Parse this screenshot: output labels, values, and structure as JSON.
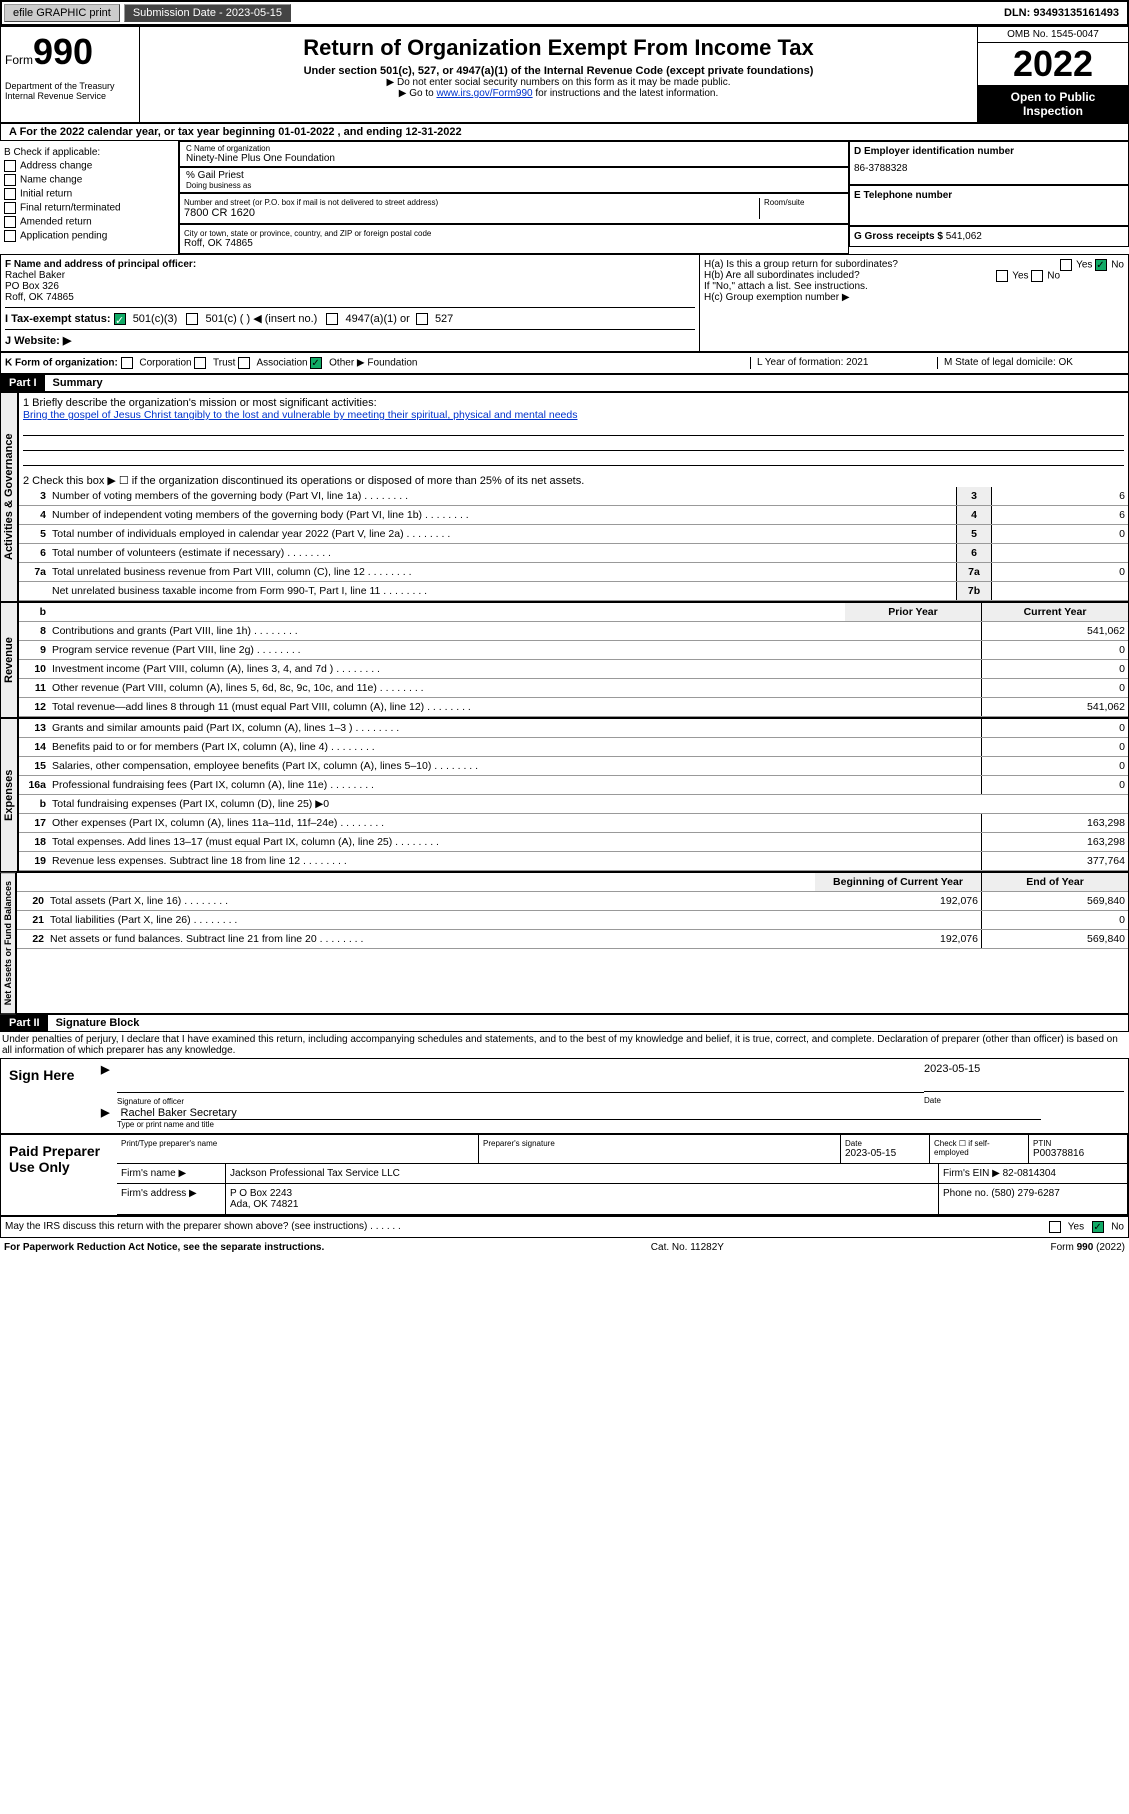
{
  "topbar": {
    "efile": "efile GRAPHIC print",
    "submission_label": "Submission Date - 2023-05-15",
    "dln": "DLN: 93493135161493"
  },
  "header": {
    "form_word": "Form",
    "form_num": "990",
    "title": "Return of Organization Exempt From Income Tax",
    "subtitle": "Under section 501(c), 527, or 4947(a)(1) of the Internal Revenue Code (except private foundations)",
    "note1": "▶ Do not enter social security numbers on this form as it may be made public.",
    "note2_pre": "▶ Go to ",
    "note2_link": "www.irs.gov/Form990",
    "note2_post": " for instructions and the latest information.",
    "dept": "Department of the Treasury\nInternal Revenue Service",
    "omb": "OMB No. 1545-0047",
    "year": "2022",
    "inspect": "Open to Public Inspection"
  },
  "row_a": "A For the 2022 calendar year, or tax year beginning 01-01-2022   , and ending 12-31-2022",
  "col_b": {
    "title": "B Check if applicable:",
    "items": [
      "Address change",
      "Name change",
      "Initial return",
      "Final return/terminated",
      "Amended return",
      "Application pending"
    ]
  },
  "col_c": {
    "name_label": "C Name of organization",
    "name": "Ninety-Nine Plus One Foundation",
    "care_of": "% Gail Priest",
    "dba_label": "Doing business as",
    "street_label": "Number and street (or P.O. box if mail is not delivered to street address)",
    "room_label": "Room/suite",
    "street": "7800 CR 1620",
    "city_label": "City or town, state or province, country, and ZIP or foreign postal code",
    "city": "Roff, OK  74865"
  },
  "col_d": {
    "label": "D Employer identification number",
    "value": "86-3788328"
  },
  "col_e": {
    "label": "E Telephone number",
    "value": ""
  },
  "col_g": {
    "label": "G Gross receipts $",
    "value": "541,062"
  },
  "col_f": {
    "label": "F  Name and address of principal officer:",
    "name": "Rachel Baker",
    "po": "PO Box 326",
    "city": "Roff, OK  74865"
  },
  "col_h": {
    "ha": "H(a)  Is this a group return for subordinates?",
    "hb": "H(b)  Are all subordinates included?",
    "hb_note": "If \"No,\" attach a list. See instructions.",
    "hc": "H(c)  Group exemption number ▶",
    "yes": "Yes",
    "no": "No"
  },
  "row_i": {
    "label": "I   Tax-exempt status:",
    "opt1": "501(c)(3)",
    "opt2": "501(c) (  ) ◀ (insert no.)",
    "opt3": "4947(a)(1) or",
    "opt4": "527"
  },
  "row_j": {
    "label": "J   Website: ▶",
    "value": ""
  },
  "row_k": {
    "label": "K Form of organization:",
    "opts": [
      "Corporation",
      "Trust",
      "Association",
      "Other ▶"
    ],
    "other_val": "Foundation",
    "l": "L Year of formation: 2021",
    "m": "M State of legal domicile: OK"
  },
  "part1": {
    "hdr": "Part I",
    "title": "Summary"
  },
  "activities": {
    "label": "Activities & Governance",
    "l1": "1   Briefly describe the organization's mission or most significant activities:",
    "mission": "Bring the gospel of Jesus Christ tangibly to the lost and vulnerable by meeting their spiritual, physical and mental needs",
    "l2": "2   Check this box ▶ ☐  if the organization discontinued its operations or disposed of more than 25% of its net assets.",
    "lines": [
      {
        "n": "3",
        "t": "Number of voting members of the governing body (Part VI, line 1a)",
        "c": "3",
        "v": "6"
      },
      {
        "n": "4",
        "t": "Number of independent voting members of the governing body (Part VI, line 1b)",
        "c": "4",
        "v": "6"
      },
      {
        "n": "5",
        "t": "Total number of individuals employed in calendar year 2022 (Part V, line 2a)",
        "c": "5",
        "v": "0"
      },
      {
        "n": "6",
        "t": "Total number of volunteers (estimate if necessary)",
        "c": "6",
        "v": ""
      },
      {
        "n": "7a",
        "t": "Total unrelated business revenue from Part VIII, column (C), line 12",
        "c": "7a",
        "v": "0"
      },
      {
        "n": "",
        "t": "Net unrelated business taxable income from Form 990-T, Part I, line 11",
        "c": "7b",
        "v": ""
      }
    ]
  },
  "revenue": {
    "label": "Revenue",
    "thead": {
      "n": "b",
      "prior": "Prior Year",
      "curr": "Current Year"
    },
    "lines": [
      {
        "n": "8",
        "t": "Contributions and grants (Part VIII, line 1h)",
        "p": "",
        "c": "541,062"
      },
      {
        "n": "9",
        "t": "Program service revenue (Part VIII, line 2g)",
        "p": "",
        "c": "0"
      },
      {
        "n": "10",
        "t": "Investment income (Part VIII, column (A), lines 3, 4, and 7d )",
        "p": "",
        "c": "0"
      },
      {
        "n": "11",
        "t": "Other revenue (Part VIII, column (A), lines 5, 6d, 8c, 9c, 10c, and 11e)",
        "p": "",
        "c": "0"
      },
      {
        "n": "12",
        "t": "Total revenue—add lines 8 through 11 (must equal Part VIII, column (A), line 12)",
        "p": "",
        "c": "541,062"
      }
    ]
  },
  "expenses": {
    "label": "Expenses",
    "lines": [
      {
        "n": "13",
        "t": "Grants and similar amounts paid (Part IX, column (A), lines 1–3 )",
        "p": "",
        "c": "0"
      },
      {
        "n": "14",
        "t": "Benefits paid to or for members (Part IX, column (A), line 4)",
        "p": "",
        "c": "0"
      },
      {
        "n": "15",
        "t": "Salaries, other compensation, employee benefits (Part IX, column (A), lines 5–10)",
        "p": "",
        "c": "0"
      },
      {
        "n": "16a",
        "t": "Professional fundraising fees (Part IX, column (A), line 11e)",
        "p": "",
        "c": "0"
      },
      {
        "n": "b",
        "t": "Total fundraising expenses (Part IX, column (D), line 25) ▶0",
        "p": "—",
        "c": "—"
      },
      {
        "n": "17",
        "t": "Other expenses (Part IX, column (A), lines 11a–11d, 11f–24e)",
        "p": "",
        "c": "163,298"
      },
      {
        "n": "18",
        "t": "Total expenses. Add lines 13–17 (must equal Part IX, column (A), line 25)",
        "p": "",
        "c": "163,298"
      },
      {
        "n": "19",
        "t": "Revenue less expenses. Subtract line 18 from line 12",
        "p": "",
        "c": "377,764"
      }
    ]
  },
  "netassets": {
    "label": "Net Assets or Fund Balances",
    "thead": {
      "prior": "Beginning of Current Year",
      "curr": "End of Year"
    },
    "lines": [
      {
        "n": "20",
        "t": "Total assets (Part X, line 16)",
        "p": "192,076",
        "c": "569,840"
      },
      {
        "n": "21",
        "t": "Total liabilities (Part X, line 26)",
        "p": "",
        "c": "0"
      },
      {
        "n": "22",
        "t": "Net assets or fund balances. Subtract line 21 from line 20",
        "p": "192,076",
        "c": "569,840"
      }
    ]
  },
  "part2": {
    "hdr": "Part II",
    "title": "Signature Block"
  },
  "declaration": "Under penalties of perjury, I declare that I have examined this return, including accompanying schedules and statements, and to the best of my knowledge and belief, it is true, correct, and complete. Declaration of preparer (other than officer) is based on all information of which preparer has any knowledge.",
  "sign": {
    "label": "Sign Here",
    "sig_label": "Signature of officer",
    "date_label": "Date",
    "date": "2023-05-15",
    "name": "Rachel Baker Secretary",
    "name_label": "Type or print name and title"
  },
  "paid": {
    "label": "Paid Preparer Use Only",
    "h1": "Print/Type preparer's name",
    "h2": "Preparer's signature",
    "h3": "Date",
    "h3v": "2023-05-15",
    "h4": "Check ☐ if self-employed",
    "h5": "PTIN",
    "h5v": "P00378816",
    "firm_label": "Firm's name   ▶",
    "firm": "Jackson Professional Tax Service LLC",
    "ein_label": "Firm's EIN ▶",
    "ein": "82-0814304",
    "addr_label": "Firm's address ▶",
    "addr1": "P O Box 2243",
    "addr2": "Ada, OK  74821",
    "phone_label": "Phone no.",
    "phone": "(580) 279-6287"
  },
  "may_discuss": "May the IRS discuss this return with the preparer shown above? (see instructions)",
  "footer": {
    "left": "For Paperwork Reduction Act Notice, see the separate instructions.",
    "mid": "Cat. No. 11282Y",
    "right": "Form 990 (2022)"
  }
}
